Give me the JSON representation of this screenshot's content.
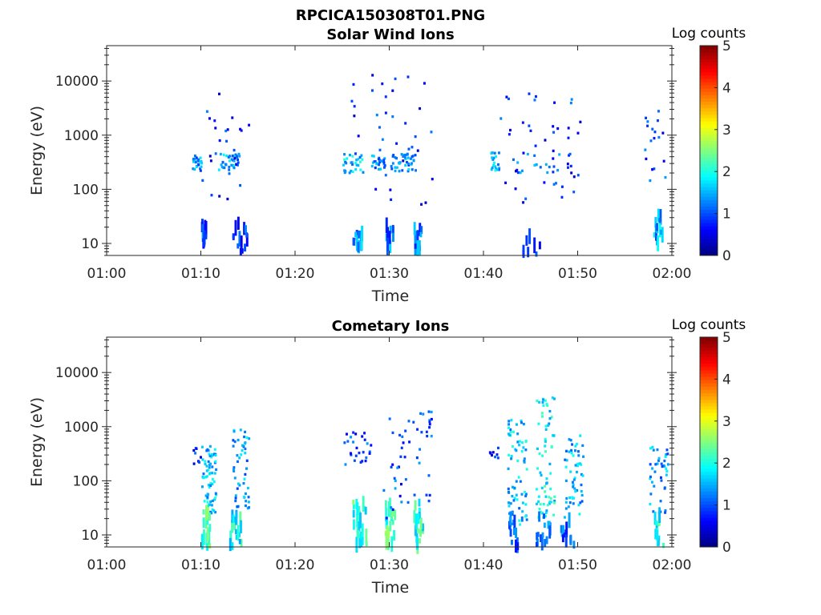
{
  "figure": {
    "file_title": "RPCICA150308T01.PNG"
  },
  "colorscale": {
    "label": "Log counts",
    "range": [
      0,
      5
    ],
    "ticks": [
      "0",
      "1",
      "2",
      "3",
      "4",
      "5"
    ],
    "colormap": "jet"
  },
  "chart_data": [
    {
      "type": "heatmap",
      "title": "Solar Wind Ions",
      "xlabel": "Time",
      "ylabel": "Energy (eV)",
      "x_ticks": [
        "01:00",
        "01:10",
        "01:20",
        "01:30",
        "01:40",
        "01:50",
        "02:00"
      ],
      "x_range_min": [
        0,
        60
      ],
      "y_ticks": [
        "10",
        "100",
        "1000",
        "10000"
      ],
      "y_scale": "log",
      "ylim": [
        6,
        45000
      ],
      "clusters": [
        {
          "t": [
            9.0,
            10.0
          ],
          "e": [
            220,
            420
          ],
          "z": 1.3,
          "n": 24
        },
        {
          "t": [
            11.8,
            14.0
          ],
          "e": [
            220,
            450
          ],
          "z": 1.4,
          "n": 38
        },
        {
          "t": [
            10.0,
            15.0
          ],
          "e": [
            60,
            9000
          ],
          "z": 0.8,
          "n": 26
        },
        {
          "t": [
            10.0,
            10.6
          ],
          "e": [
            10,
            22
          ],
          "z": 1.0,
          "n": 10,
          "bars": true
        },
        {
          "t": [
            13.0,
            15.0
          ],
          "e": [
            7,
            25
          ],
          "z": 0.9,
          "n": 14,
          "bars": true
        },
        {
          "t": [
            25.0,
            27.2
          ],
          "e": [
            200,
            450
          ],
          "z": 1.6,
          "n": 30
        },
        {
          "t": [
            28.0,
            29.5
          ],
          "e": [
            220,
            420
          ],
          "z": 1.3,
          "n": 24
        },
        {
          "t": [
            30.0,
            32.5
          ],
          "e": [
            200,
            450
          ],
          "z": 1.3,
          "n": 38
        },
        {
          "t": [
            25.5,
            34.5
          ],
          "e": [
            50,
            14000
          ],
          "z": 0.8,
          "n": 40
        },
        {
          "t": [
            26.0,
            27.0
          ],
          "e": [
            7,
            22
          ],
          "z": 1.3,
          "n": 12,
          "bars": true
        },
        {
          "t": [
            29.5,
            30.3
          ],
          "e": [
            8,
            22
          ],
          "z": 1.2,
          "n": 12,
          "bars": true
        },
        {
          "t": [
            32.5,
            33.3
          ],
          "e": [
            8,
            20
          ],
          "z": 1.2,
          "n": 12,
          "bars": true
        },
        {
          "t": [
            40.6,
            41.6
          ],
          "e": [
            220,
            480
          ],
          "z": 1.5,
          "n": 20
        },
        {
          "t": [
            41.5,
            50.5
          ],
          "e": [
            55,
            7000
          ],
          "z": 0.8,
          "n": 44
        },
        {
          "t": [
            43.5,
            49.5
          ],
          "e": [
            200,
            450
          ],
          "z": 1.1,
          "n": 20
        },
        {
          "t": [
            44.0,
            46.0
          ],
          "e": [
            6,
            20
          ],
          "z": 0.8,
          "n": 8,
          "bars": true
        },
        {
          "t": [
            57.0,
            59.2
          ],
          "e": [
            100,
            4000
          ],
          "z": 0.9,
          "n": 18
        },
        {
          "t": [
            58.0,
            59.0
          ],
          "e": [
            10,
            35
          ],
          "z": 1.4,
          "n": 14,
          "bars": true
        }
      ]
    },
    {
      "type": "heatmap",
      "title": "Cometary Ions",
      "xlabel": "Time",
      "ylabel": "Energy (eV)",
      "x_ticks": [
        "01:00",
        "01:10",
        "01:20",
        "01:30",
        "01:40",
        "01:50",
        "02:00"
      ],
      "x_range_min": [
        0,
        60
      ],
      "y_ticks": [
        "10",
        "100",
        "1000",
        "10000"
      ],
      "y_scale": "log",
      "ylim": [
        6,
        45000
      ],
      "clusters": [
        {
          "t": [
            10.0,
            11.5
          ],
          "e": [
            25,
            500
          ],
          "z": 1.6,
          "n": 70
        },
        {
          "t": [
            13.3,
            15.0
          ],
          "e": [
            30,
            900
          ],
          "z": 1.4,
          "n": 50
        },
        {
          "t": [
            10.0,
            11.0
          ],
          "e": [
            6,
            30
          ],
          "z": 2.2,
          "n": 24,
          "bars": true
        },
        {
          "t": [
            13.0,
            14.2
          ],
          "e": [
            6,
            25
          ],
          "z": 1.9,
          "n": 18,
          "bars": true
        },
        {
          "t": [
            9.0,
            10.0
          ],
          "e": [
            200,
            400
          ],
          "z": 0.7,
          "n": 8
        },
        {
          "t": [
            25.0,
            28.0
          ],
          "e": [
            200,
            800
          ],
          "z": 0.9,
          "n": 26
        },
        {
          "t": [
            26.0,
            27.5
          ],
          "e": [
            6,
            40
          ],
          "z": 2.1,
          "n": 24,
          "bars": true
        },
        {
          "t": [
            29.5,
            30.5
          ],
          "e": [
            6,
            40
          ],
          "z": 2.2,
          "n": 22,
          "bars": true
        },
        {
          "t": [
            32.5,
            33.5
          ],
          "e": [
            6,
            40
          ],
          "z": 2.1,
          "n": 22,
          "bars": true
        },
        {
          "t": [
            29.0,
            34.5
          ],
          "e": [
            20,
            2000
          ],
          "z": 1.0,
          "n": 50
        },
        {
          "t": [
            42.5,
            44.5
          ],
          "e": [
            15,
            1500
          ],
          "z": 1.6,
          "n": 70
        },
        {
          "t": [
            45.5,
            47.5
          ],
          "e": [
            20,
            3500
          ],
          "z": 1.8,
          "n": 70
        },
        {
          "t": [
            48.5,
            50.5
          ],
          "e": [
            20,
            700
          ],
          "z": 1.5,
          "n": 55
        },
        {
          "t": [
            42.5,
            44.0
          ],
          "e": [
            6,
            20
          ],
          "z": 1.1,
          "n": 14,
          "bars": true
        },
        {
          "t": [
            45.5,
            47.0
          ],
          "e": [
            6,
            25
          ],
          "z": 1.3,
          "n": 16,
          "bars": true
        },
        {
          "t": [
            48.0,
            49.5
          ],
          "e": [
            6,
            20
          ],
          "z": 1.1,
          "n": 12,
          "bars": true
        },
        {
          "t": [
            40.5,
            42.0
          ],
          "e": [
            250,
            450
          ],
          "z": 0.8,
          "n": 8
        },
        {
          "t": [
            57.5,
            59.5
          ],
          "e": [
            25,
            500
          ],
          "z": 1.4,
          "n": 40
        },
        {
          "t": [
            58.0,
            59.0
          ],
          "e": [
            6,
            25
          ],
          "z": 2.0,
          "n": 14,
          "bars": true
        }
      ]
    }
  ]
}
